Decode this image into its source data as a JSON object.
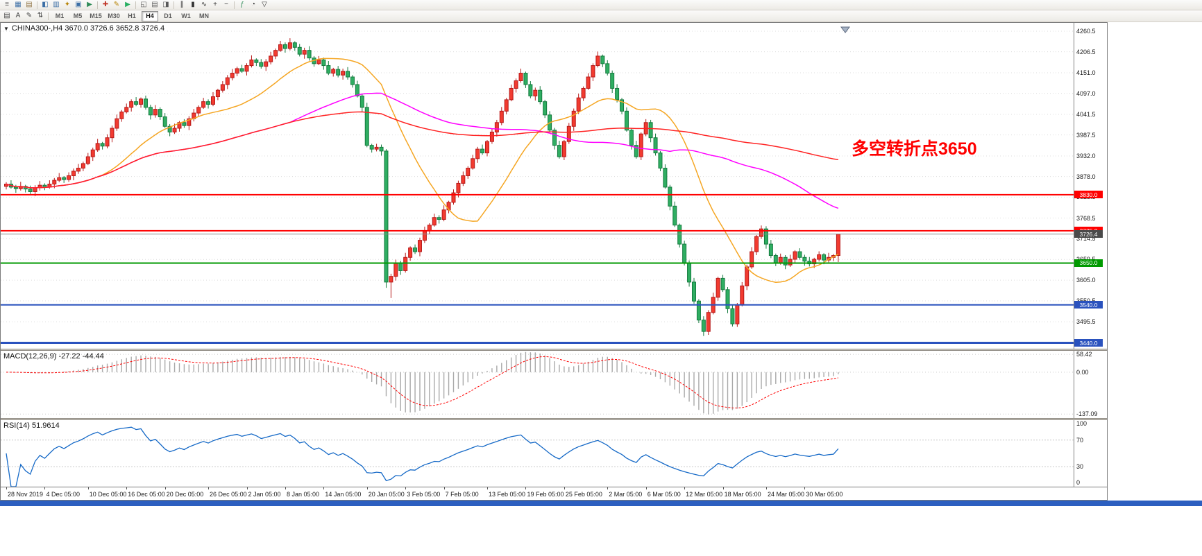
{
  "toolbar_main": {
    "items": [
      {
        "t": "btn",
        "name": "menu",
        "glyph": "≡",
        "color": "#5a5a5a"
      },
      {
        "t": "btn",
        "name": "new-chart",
        "glyph": "▦",
        "color": "#3b6ea5"
      },
      {
        "t": "btn",
        "name": "profiles",
        "glyph": "▤",
        "color": "#8a6d3b"
      },
      {
        "t": "sep"
      },
      {
        "t": "btn",
        "name": "market-watch",
        "glyph": "◧",
        "color": "#3b6ea5"
      },
      {
        "t": "btn",
        "name": "data-window",
        "glyph": "▥",
        "color": "#3b6ea5"
      },
      {
        "t": "btn",
        "name": "navigator",
        "glyph": "✦",
        "color": "#b8860b"
      },
      {
        "t": "btn",
        "name": "terminal",
        "glyph": "▣",
        "color": "#3b6ea5"
      },
      {
        "t": "btn",
        "name": "strategy-tester",
        "glyph": "▶",
        "color": "#2e8b57"
      },
      {
        "t": "sep"
      },
      {
        "t": "btn",
        "name": "new-order",
        "glyph": "✚",
        "color": "#c0392b"
      },
      {
        "t": "btn",
        "name": "metaeditor",
        "glyph": "✎",
        "color": "#b8860b"
      },
      {
        "t": "btn",
        "name": "auto-trading",
        "glyph": "▶",
        "color": "#27ae60"
      },
      {
        "t": "sep"
      },
      {
        "t": "btn",
        "name": "full-screen",
        "glyph": "◱",
        "color": "#5a5a5a"
      },
      {
        "t": "btn",
        "name": "print",
        "glyph": "▤",
        "color": "#5a5a5a"
      },
      {
        "t": "btn",
        "name": "print-preview",
        "glyph": "◨",
        "color": "#5a5a5a"
      },
      {
        "t": "sep"
      },
      {
        "t": "btn",
        "name": "bar-chart",
        "glyph": "∥",
        "color": "#333333"
      },
      {
        "t": "btn",
        "name": "candlestick-chart",
        "glyph": "▮",
        "color": "#333333"
      },
      {
        "t": "btn",
        "name": "line-chart",
        "glyph": "∿",
        "color": "#333333"
      },
      {
        "t": "btn",
        "name": "zoom-in",
        "glyph": "+",
        "color": "#333333"
      },
      {
        "t": "btn",
        "name": "zoom-out",
        "glyph": "−",
        "color": "#333333"
      },
      {
        "t": "sep"
      },
      {
        "t": "btn",
        "name": "indicators",
        "glyph": "ƒ",
        "color": "#2e8b57"
      },
      {
        "t": "btn",
        "name": "periods",
        "glyph": "◔",
        "color": "#333333"
      },
      {
        "t": "btn",
        "name": "templates",
        "glyph": "▽",
        "color": "#333333"
      }
    ]
  },
  "toolbar_tools": [
    {
      "name": "objects-list",
      "glyph": "▤"
    },
    {
      "name": "text-label",
      "glyph": "A"
    },
    {
      "name": "draw",
      "glyph": "✎"
    },
    {
      "name": "sort",
      "glyph": "⇅"
    }
  ],
  "toolbar_timeframes": {
    "labels": [
      "M1",
      "M5",
      "M15",
      "M30",
      "H1",
      "H4",
      "D1",
      "W1",
      "MN"
    ],
    "active": "H4"
  },
  "chart": {
    "title": "CHINA300-,H4 3670.0 3726.6 3652.8 3726.4",
    "symbol": "CHINA300-",
    "period": "H4",
    "annotation": {
      "text": "多空转折点3650",
      "color": "#ff0000"
    },
    "time_axis": [
      "28 Nov 2019",
      "4 Dec 05:00",
      "10 Dec 05:00",
      "16 Dec 05:00",
      "20 Dec 05:00",
      "26 Dec 05:00",
      "2 Jan 05:00",
      "8 Jan 05:00",
      "14 Jan 05:00",
      "20 Jan 05:00",
      "3 Feb 05:00",
      "7 Feb 05:00",
      "13 Feb 05:00",
      "19 Feb 05:00",
      "25 Feb 05:00",
      "2 Mar 05:00",
      "6 Mar 05:00",
      "12 Mar 05:00",
      "18 Mar 05:00",
      "24 Mar 05:00",
      "30 Mar 05:00"
    ]
  },
  "indicators": {
    "macd": {
      "title": "MACD(12,26,9) -27.22 -44.44"
    },
    "rsi": {
      "title": "RSI(14) 51.9614"
    }
  },
  "chart_data": {
    "type": "candlestick",
    "symbol": "CHINA300-",
    "timeframe": "H4",
    "last_ohlc": {
      "open": 3670.0,
      "high": 3726.6,
      "low": 3652.8,
      "close": 3726.4
    },
    "ylim": [
      3428,
      4278
    ],
    "price_ticks": [
      4260.5,
      4206.5,
      4151.0,
      4097.0,
      4041.5,
      3987.5,
      3932.0,
      3878.0,
      3823.5,
      3768.5,
      3714.5,
      3659.5,
      3605.0,
      3550.5,
      3495.5,
      3441.0
    ],
    "hlines": [
      {
        "value": 3830.0,
        "label": "3830.0",
        "color": "#ff0000",
        "width": 2
      },
      {
        "value": 3735.0,
        "label": "3735.0",
        "color": "#ff0000",
        "width": 2
      },
      {
        "value": 3650.0,
        "label": "3650.0",
        "color": "#009a00",
        "width": 2
      },
      {
        "value": 3540.0,
        "label": "3540.0",
        "color": "#2a52be",
        "width": 2
      },
      {
        "value": 3440.0,
        "label": "3440.0",
        "color": "#2a52be",
        "width": 3
      }
    ],
    "current_price": {
      "value": 3726.4,
      "label": "3726.4",
      "color": "#4a4a4a"
    },
    "bull_color": "#f23b30",
    "bull_stroke": "#b61919",
    "bear_color": "#2fae62",
    "bear_stroke": "#147a3e",
    "overlays": [
      {
        "name": "SMA20",
        "period": 20,
        "color": "#f5a623"
      },
      {
        "name": "SMA60",
        "period": 60,
        "color": "#ff00ff"
      },
      {
        "name": "SMA140",
        "period": 140,
        "color": "#ff2222"
      }
    ],
    "macd": {
      "fast": 12,
      "slow": 26,
      "signal": 9,
      "range": [
        -150,
        70
      ],
      "grid_values": [
        58.42,
        0,
        -137.09
      ],
      "grid_labels": [
        "58.42",
        "0.00",
        "-137.09"
      ],
      "hist_color": "#a9a9a9",
      "signal_color": "#ff0000",
      "last_values": [
        -27.22,
        -44.44
      ]
    },
    "rsi": {
      "period": 14,
      "range": [
        0,
        100
      ],
      "levels": [
        70,
        30
      ],
      "scale_labels": [
        {
          "v": 100,
          "t": "100"
        },
        {
          "v": 70,
          "t": "70"
        },
        {
          "v": 30,
          "t": "30"
        },
        {
          "v": 0,
          "t": "0"
        }
      ],
      "color": "#1569c7",
      "last_value": 51.9614
    },
    "candles": [
      [
        3852,
        3863,
        3844,
        3858
      ],
      [
        3858,
        3868,
        3846,
        3850
      ],
      [
        3850,
        3856,
        3835,
        3846
      ],
      [
        3846,
        3864,
        3841,
        3852
      ],
      [
        3852,
        3856,
        3836,
        3845
      ],
      [
        3845,
        3854,
        3832,
        3838
      ],
      [
        3838,
        3855,
        3826,
        3848
      ],
      [
        3848,
        3866,
        3841,
        3855
      ],
      [
        3855,
        3860,
        3842,
        3850
      ],
      [
        3850,
        3868,
        3846,
        3858
      ],
      [
        3858,
        3874,
        3847,
        3868
      ],
      [
        3868,
        3887,
        3863,
        3875
      ],
      [
        3875,
        3879,
        3861,
        3870
      ],
      [
        3870,
        3889,
        3864,
        3880
      ],
      [
        3880,
        3899,
        3868,
        3892
      ],
      [
        3892,
        3911,
        3885,
        3900
      ],
      [
        3900,
        3917,
        3892,
        3912
      ],
      [
        3912,
        3940,
        3908,
        3930
      ],
      [
        3930,
        3954,
        3919,
        3948
      ],
      [
        3948,
        3977,
        3943,
        3965
      ],
      [
        3965,
        3969,
        3949,
        3958
      ],
      [
        3958,
        3989,
        3952,
        3980
      ],
      [
        3980,
        4012,
        3968,
        4005
      ],
      [
        4005,
        4041,
        3998,
        4030
      ],
      [
        4030,
        4053,
        4022,
        4048
      ],
      [
        4048,
        4070,
        4044,
        4060
      ],
      [
        4060,
        4081,
        4049,
        4075
      ],
      [
        4075,
        4087,
        4063,
        4068
      ],
      [
        4068,
        4086,
        4059,
        4082
      ],
      [
        4082,
        4091,
        4054,
        4060
      ],
      [
        4060,
        4067,
        4028,
        4040
      ],
      [
        4040,
        4066,
        4033,
        4055
      ],
      [
        4055,
        4060,
        4027,
        4035
      ],
      [
        4035,
        4045,
        4006,
        4010
      ],
      [
        4010,
        4016,
        3984,
        3995
      ],
      [
        3995,
        4017,
        3990,
        4005
      ],
      [
        4005,
        4024,
        3996,
        4020
      ],
      [
        4020,
        4029,
        4006,
        4012
      ],
      [
        4012,
        4037,
        4000,
        4030
      ],
      [
        4030,
        4056,
        4023,
        4045
      ],
      [
        4045,
        4065,
        4037,
        4060
      ],
      [
        4060,
        4085,
        4056,
        4075
      ],
      [
        4075,
        4081,
        4057,
        4068
      ],
      [
        4068,
        4100,
        4063,
        4088
      ],
      [
        4088,
        4109,
        4079,
        4105
      ],
      [
        4105,
        4129,
        4099,
        4120
      ],
      [
        4120,
        4145,
        4108,
        4138
      ],
      [
        4138,
        4161,
        4131,
        4150
      ],
      [
        4150,
        4167,
        4142,
        4162
      ],
      [
        4162,
        4172,
        4151,
        4155
      ],
      [
        4155,
        4176,
        4144,
        4170
      ],
      [
        4170,
        4197,
        4165,
        4185
      ],
      [
        4185,
        4189,
        4169,
        4178
      ],
      [
        4178,
        4187,
        4162,
        4168
      ],
      [
        4168,
        4187,
        4156,
        4180
      ],
      [
        4180,
        4206,
        4173,
        4195
      ],
      [
        4195,
        4215,
        4187,
        4210
      ],
      [
        4210,
        4235,
        4206,
        4225
      ],
      [
        4225,
        4231,
        4204,
        4215
      ],
      [
        4215,
        4242,
        4210,
        4230
      ],
      [
        4230,
        4234,
        4209,
        4218
      ],
      [
        4218,
        4227,
        4194,
        4200
      ],
      [
        4200,
        4217,
        4188,
        4210
      ],
      [
        4210,
        4221,
        4183,
        4190
      ],
      [
        4190,
        4195,
        4167,
        4175
      ],
      [
        4175,
        4195,
        4171,
        4185
      ],
      [
        4185,
        4191,
        4159,
        4170
      ],
      [
        4170,
        4182,
        4145,
        4150
      ],
      [
        4150,
        4164,
        4141,
        4160
      ],
      [
        4160,
        4169,
        4139,
        4145
      ],
      [
        4145,
        4162,
        4133,
        4155
      ],
      [
        4155,
        4166,
        4133,
        4140
      ],
      [
        4140,
        4145,
        4112,
        4120
      ],
      [
        4120,
        4130,
        4086,
        4090
      ],
      [
        4090,
        4096,
        4049,
        4060
      ],
      [
        4060,
        4072,
        3955,
        3960
      ],
      [
        3960,
        3964,
        3941,
        3950
      ],
      [
        3950,
        3964,
        3944,
        3955
      ],
      [
        3955,
        3962,
        3933,
        3945
      ],
      [
        3945,
        3950,
        3585,
        3600
      ],
      [
        3600,
        3622,
        3558,
        3615
      ],
      [
        3615,
        3659,
        3604,
        3650
      ],
      [
        3650,
        3656,
        3619,
        3630
      ],
      [
        3630,
        3677,
        3625,
        3665
      ],
      [
        3665,
        3694,
        3656,
        3690
      ],
      [
        3690,
        3699,
        3674,
        3680
      ],
      [
        3680,
        3717,
        3668,
        3710
      ],
      [
        3710,
        3746,
        3703,
        3735
      ],
      [
        3735,
        3755,
        3727,
        3750
      ],
      [
        3750,
        3780,
        3746,
        3770
      ],
      [
        3770,
        3776,
        3754,
        3765
      ],
      [
        3765,
        3802,
        3760,
        3790
      ],
      [
        3790,
        3814,
        3781,
        3810
      ],
      [
        3810,
        3844,
        3804,
        3835
      ],
      [
        3835,
        3867,
        3823,
        3860
      ],
      [
        3860,
        3891,
        3853,
        3880
      ],
      [
        3880,
        3905,
        3872,
        3900
      ],
      [
        3900,
        3935,
        3896,
        3925
      ],
      [
        3925,
        3956,
        3914,
        3950
      ],
      [
        3950,
        3962,
        3935,
        3940
      ],
      [
        3940,
        3974,
        3931,
        3970
      ],
      [
        3970,
        4004,
        3964,
        3995
      ],
      [
        3995,
        4027,
        3983,
        4020
      ],
      [
        4020,
        4061,
        4013,
        4050
      ],
      [
        4050,
        4085,
        4042,
        4080
      ],
      [
        4080,
        4120,
        4076,
        4110
      ],
      [
        4110,
        4136,
        4099,
        4130
      ],
      [
        4130,
        4162,
        4125,
        4150
      ],
      [
        4150,
        4154,
        4111,
        4120
      ],
      [
        4120,
        4129,
        4084,
        4090
      ],
      [
        4090,
        4112,
        4078,
        4105
      ],
      [
        4105,
        4116,
        4068,
        4075
      ],
      [
        4075,
        4080,
        4032,
        4040
      ],
      [
        4040,
        4050,
        3996,
        4000
      ],
      [
        4000,
        4006,
        3949,
        3960
      ],
      [
        3960,
        3972,
        3925,
        3930
      ],
      [
        3930,
        3974,
        3921,
        3970
      ],
      [
        3970,
        4019,
        3964,
        4010
      ],
      [
        4010,
        4057,
        3998,
        4050
      ],
      [
        4050,
        4096,
        4043,
        4085
      ],
      [
        4085,
        4115,
        4077,
        4110
      ],
      [
        4110,
        4150,
        4106,
        4140
      ],
      [
        4140,
        4176,
        4129,
        4170
      ],
      [
        4170,
        4207,
        4165,
        4195
      ],
      [
        4195,
        4199,
        4166,
        4175
      ],
      [
        4175,
        4184,
        4144,
        4150
      ],
      [
        4150,
        4157,
        4098,
        4110
      ],
      [
        4110,
        4121,
        4073,
        4080
      ],
      [
        4080,
        4085,
        4042,
        4050
      ],
      [
        4050,
        4060,
        3996,
        4000
      ],
      [
        4000,
        4006,
        3949,
        3960
      ],
      [
        3960,
        3972,
        3925,
        3930
      ],
      [
        3930,
        3994,
        3921,
        3990
      ],
      [
        3990,
        4029,
        3984,
        4020
      ],
      [
        4020,
        4027,
        3968,
        3980
      ],
      [
        3980,
        3991,
        3933,
        3940
      ],
      [
        3940,
        3945,
        3892,
        3900
      ],
      [
        3900,
        3910,
        3846,
        3850
      ],
      [
        3850,
        3856,
        3789,
        3800
      ],
      [
        3800,
        3812,
        3745,
        3750
      ],
      [
        3750,
        3754,
        3691,
        3700
      ],
      [
        3700,
        3709,
        3644,
        3650
      ],
      [
        3650,
        3657,
        3588,
        3600
      ],
      [
        3600,
        3611,
        3543,
        3550
      ],
      [
        3550,
        3555,
        3492,
        3500
      ],
      [
        3500,
        3510,
        3458,
        3470
      ],
      [
        3470,
        3526,
        3461,
        3520
      ],
      [
        3520,
        3572,
        3515,
        3560
      ],
      [
        3560,
        3614,
        3551,
        3610
      ],
      [
        3610,
        3619,
        3574,
        3580
      ],
      [
        3580,
        3587,
        3518,
        3530
      ],
      [
        3530,
        3541,
        3483,
        3490
      ],
      [
        3490,
        3545,
        3482,
        3540
      ],
      [
        3540,
        3600,
        3536,
        3590
      ],
      [
        3590,
        3646,
        3579,
        3640
      ],
      [
        3640,
        3692,
        3635,
        3680
      ],
      [
        3680,
        3724,
        3671,
        3720
      ],
      [
        3720,
        3749,
        3714,
        3740
      ],
      [
        3740,
        3747,
        3688,
        3700
      ],
      [
        3700,
        3711,
        3663,
        3670
      ],
      [
        3670,
        3675,
        3642,
        3650
      ],
      [
        3650,
        3675,
        3646,
        3665
      ],
      [
        3665,
        3671,
        3634,
        3645
      ],
      [
        3645,
        3672,
        3640,
        3660
      ],
      [
        3660,
        3684,
        3651,
        3680
      ],
      [
        3680,
        3689,
        3659,
        3665
      ],
      [
        3665,
        3672,
        3643,
        3655
      ],
      [
        3655,
        3666,
        3641,
        3648
      ],
      [
        3648,
        3664,
        3637,
        3660
      ],
      [
        3660,
        3681,
        3654,
        3672
      ],
      [
        3672,
        3676,
        3647,
        3658
      ],
      [
        3658,
        3677,
        3652,
        3665
      ],
      [
        3665,
        3674,
        3655,
        3670
      ],
      [
        3670,
        3726.6,
        3652.8,
        3726.4
      ]
    ]
  }
}
